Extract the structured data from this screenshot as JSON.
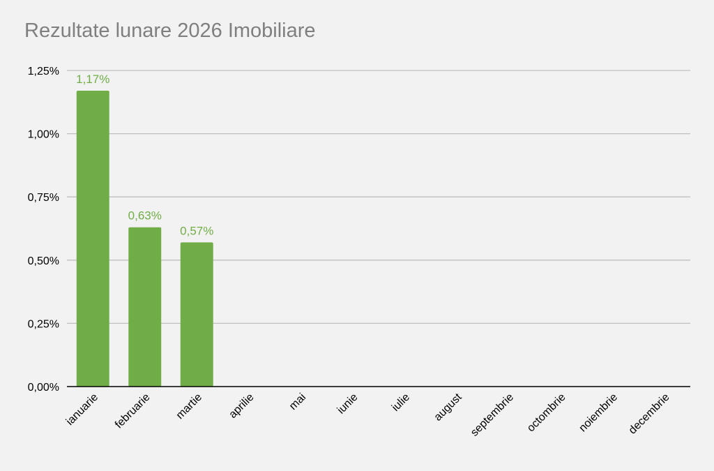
{
  "chart_data": {
    "type": "bar",
    "title": "Rezultate lunare 2026 Imobiliare",
    "xlabel": "",
    "ylabel": "",
    "categories": [
      "ianuarie",
      "februarie",
      "martie",
      "aprilie",
      "mai",
      "iunie",
      "iulie",
      "august",
      "septembrie",
      "octombrie",
      "noiembrie",
      "decembrie"
    ],
    "values": [
      1.17,
      0.63,
      0.57,
      null,
      null,
      null,
      null,
      null,
      null,
      null,
      null,
      null
    ],
    "data_labels": [
      "1,17%",
      "0,63%",
      "0,57%",
      "",
      "",
      "",
      "",
      "",
      "",
      "",
      "",
      ""
    ],
    "ylim": [
      0,
      1.25
    ],
    "yticks": [
      0,
      0.25,
      0.5,
      0.75,
      1.0,
      1.25
    ],
    "ytick_labels": [
      "0,00%",
      "0,25%",
      "0,50%",
      "0,75%",
      "1,00%",
      "1,25%"
    ],
    "grid": true,
    "legend": "none",
    "bar_color": "#70ad47",
    "label_color": "#70ad47"
  }
}
